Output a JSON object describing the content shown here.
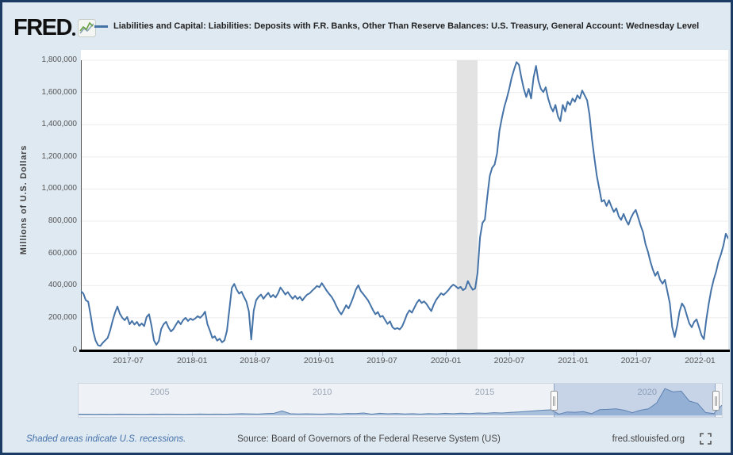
{
  "header": {
    "logo_text": "FRED",
    "series_legend": "Liabilities and Capital: Liabilities: Deposits with F.R. Banks, Other Than Reserve Balances: U.S. Treasury, General Account: Wednesday Level"
  },
  "colors": {
    "background": "#dfe9f2",
    "frame_border": "#1b3a64",
    "plot_background": "#ffffff",
    "line": "#4573a7",
    "grid": "#ececec",
    "recession_band": "#e3e3e3",
    "axis": "#000000",
    "tick_text": "#555555",
    "mini_fill": "#a9c0dd",
    "mini_line": "#5e82ad",
    "link_blue": "#4470a8"
  },
  "chart_data": {
    "type": "line",
    "title": "Liabilities and Capital: Liabilities: Deposits with F.R. Banks, Other Than Reserve Balances: U.S. Treasury, General Account: Wednesday Level",
    "ylabel": "Millions of U.S. Dollars",
    "ylim": [
      0,
      1800000
    ],
    "ytick_step": 200000,
    "grid": true,
    "line_color": "#4573a7",
    "recession_band": {
      "start": "2020-02-01",
      "end": "2020-04-01"
    },
    "xticks": [
      {
        "label": "2017-07",
        "date": "2017-07-01"
      },
      {
        "label": "2018-01",
        "date": "2018-01-01"
      },
      {
        "label": "2018-07",
        "date": "2018-07-01"
      },
      {
        "label": "2019-01",
        "date": "2019-01-01"
      },
      {
        "label": "2019-07",
        "date": "2019-07-01"
      },
      {
        "label": "2020-01",
        "date": "2020-01-01"
      },
      {
        "label": "2020-07",
        "date": "2020-07-01"
      },
      {
        "label": "2021-01",
        "date": "2021-01-01"
      },
      {
        "label": "2021-07",
        "date": "2021-07-01"
      },
      {
        "label": "2022-01",
        "date": "2022-01-01"
      }
    ],
    "series": {
      "name": "U.S. Treasury, General Account: Wednesday Level",
      "unit": "millions of U.S. dollars",
      "start_date": "2017-02-15",
      "frequency_days": 7,
      "values": [
        365000,
        350000,
        310000,
        300000,
        215000,
        120000,
        60000,
        30000,
        25000,
        45000,
        60000,
        75000,
        120000,
        180000,
        230000,
        270000,
        225000,
        200000,
        185000,
        205000,
        160000,
        180000,
        158000,
        175000,
        150000,
        165000,
        148000,
        205000,
        222000,
        150000,
        60000,
        32000,
        55000,
        130000,
        160000,
        175000,
        140000,
        115000,
        130000,
        155000,
        180000,
        160000,
        185000,
        200000,
        180000,
        195000,
        186000,
        196000,
        210000,
        200000,
        215000,
        238000,
        160000,
        120000,
        75000,
        85000,
        58000,
        70000,
        48000,
        60000,
        120000,
        250000,
        385000,
        410000,
        375000,
        350000,
        362000,
        330000,
        300000,
        240000,
        65000,
        245000,
        310000,
        330000,
        344000,
        318000,
        338000,
        355000,
        328000,
        342000,
        326000,
        352000,
        388000,
        368000,
        344000,
        360000,
        338000,
        318000,
        336000,
        316000,
        330000,
        308000,
        328000,
        344000,
        352000,
        368000,
        382000,
        398000,
        390000,
        415000,
        392000,
        368000,
        348000,
        330000,
        305000,
        272000,
        242000,
        221000,
        248000,
        278000,
        258000,
        292000,
        332000,
        376000,
        402000,
        366000,
        348000,
        328000,
        308000,
        278000,
        248000,
        222000,
        236000,
        206000,
        212000,
        186000,
        162000,
        178000,
        142000,
        130000,
        136000,
        128000,
        146000,
        182000,
        222000,
        246000,
        232000,
        262000,
        292000,
        312000,
        292000,
        302000,
        286000,
        262000,
        242000,
        282000,
        312000,
        332000,
        352000,
        342000,
        356000,
        372000,
        392000,
        406000,
        396000,
        382000,
        392000,
        372000,
        382000,
        428000,
        398000,
        374000,
        382000,
        480000,
        700000,
        790000,
        810000,
        952000,
        1082000,
        1132000,
        1152000,
        1222000,
        1362000,
        1442000,
        1512000,
        1562000,
        1622000,
        1692000,
        1742000,
        1788000,
        1772000,
        1692000,
        1622000,
        1572000,
        1622000,
        1562000,
        1692000,
        1765000,
        1672000,
        1622000,
        1602000,
        1632000,
        1562000,
        1512000,
        1482000,
        1522000,
        1452000,
        1422000,
        1522000,
        1482000,
        1542000,
        1522000,
        1562000,
        1542000,
        1582000,
        1562000,
        1612000,
        1582000,
        1552000,
        1462000,
        1312000,
        1192000,
        1082000,
        1002000,
        922000,
        932000,
        895000,
        930000,
        890000,
        858000,
        880000,
        830000,
        808000,
        845000,
        806000,
        778000,
        820000,
        850000,
        870000,
        822000,
        772000,
        732000,
        658000,
        610000,
        550000,
        500000,
        461000,
        486000,
        436000,
        412000,
        436000,
        363000,
        289000,
        141000,
        81000,
        150000,
        239000,
        289000,
        265000,
        215000,
        165000,
        141000,
        175000,
        190000,
        141000,
        91000,
        67000,
        190000,
        289000,
        372000,
        436000,
        486000,
        550000,
        594000,
        649000,
        722000,
        693000
      ]
    }
  },
  "range_slider": {
    "year_labels": [
      "2005",
      "2010",
      "2015",
      "2020"
    ],
    "start_year": 2002.5,
    "end_year": 2022.3,
    "selection_start_year": 2017.12,
    "selection_end_year": 2022.1,
    "mini_series": {
      "start_year": 2002.5,
      "points_per_year": 4,
      "values": [
        30000,
        25000,
        20000,
        28000,
        22000,
        35000,
        30000,
        25000,
        20000,
        32000,
        25000,
        35000,
        28000,
        22000,
        30000,
        40000,
        30000,
        35000,
        28000,
        45000,
        60000,
        50000,
        35000,
        70000,
        90000,
        250000,
        60000,
        45000,
        55000,
        40000,
        35000,
        60000,
        45000,
        75000,
        65000,
        110000,
        30000,
        85000,
        55000,
        75000,
        45000,
        60000,
        35000,
        70000,
        50000,
        85000,
        60000,
        95000,
        70000,
        110000,
        85000,
        130000,
        110000,
        150000,
        180000,
        220000,
        260000,
        300000,
        330000,
        25000,
        180000,
        160000,
        200000,
        60000,
        340000,
        360000,
        400000,
        300000,
        130000,
        300000,
        406000,
        800000,
        1788000,
        1560000,
        1612000,
        930000,
        772000,
        141000,
        67000,
        650000
      ]
    }
  },
  "footer": {
    "recession_note": "Shaded areas indicate U.S. recessions.",
    "source": "Source: Board of Governors of the Federal Reserve System (US)",
    "site": "fred.stlouisfed.org"
  }
}
